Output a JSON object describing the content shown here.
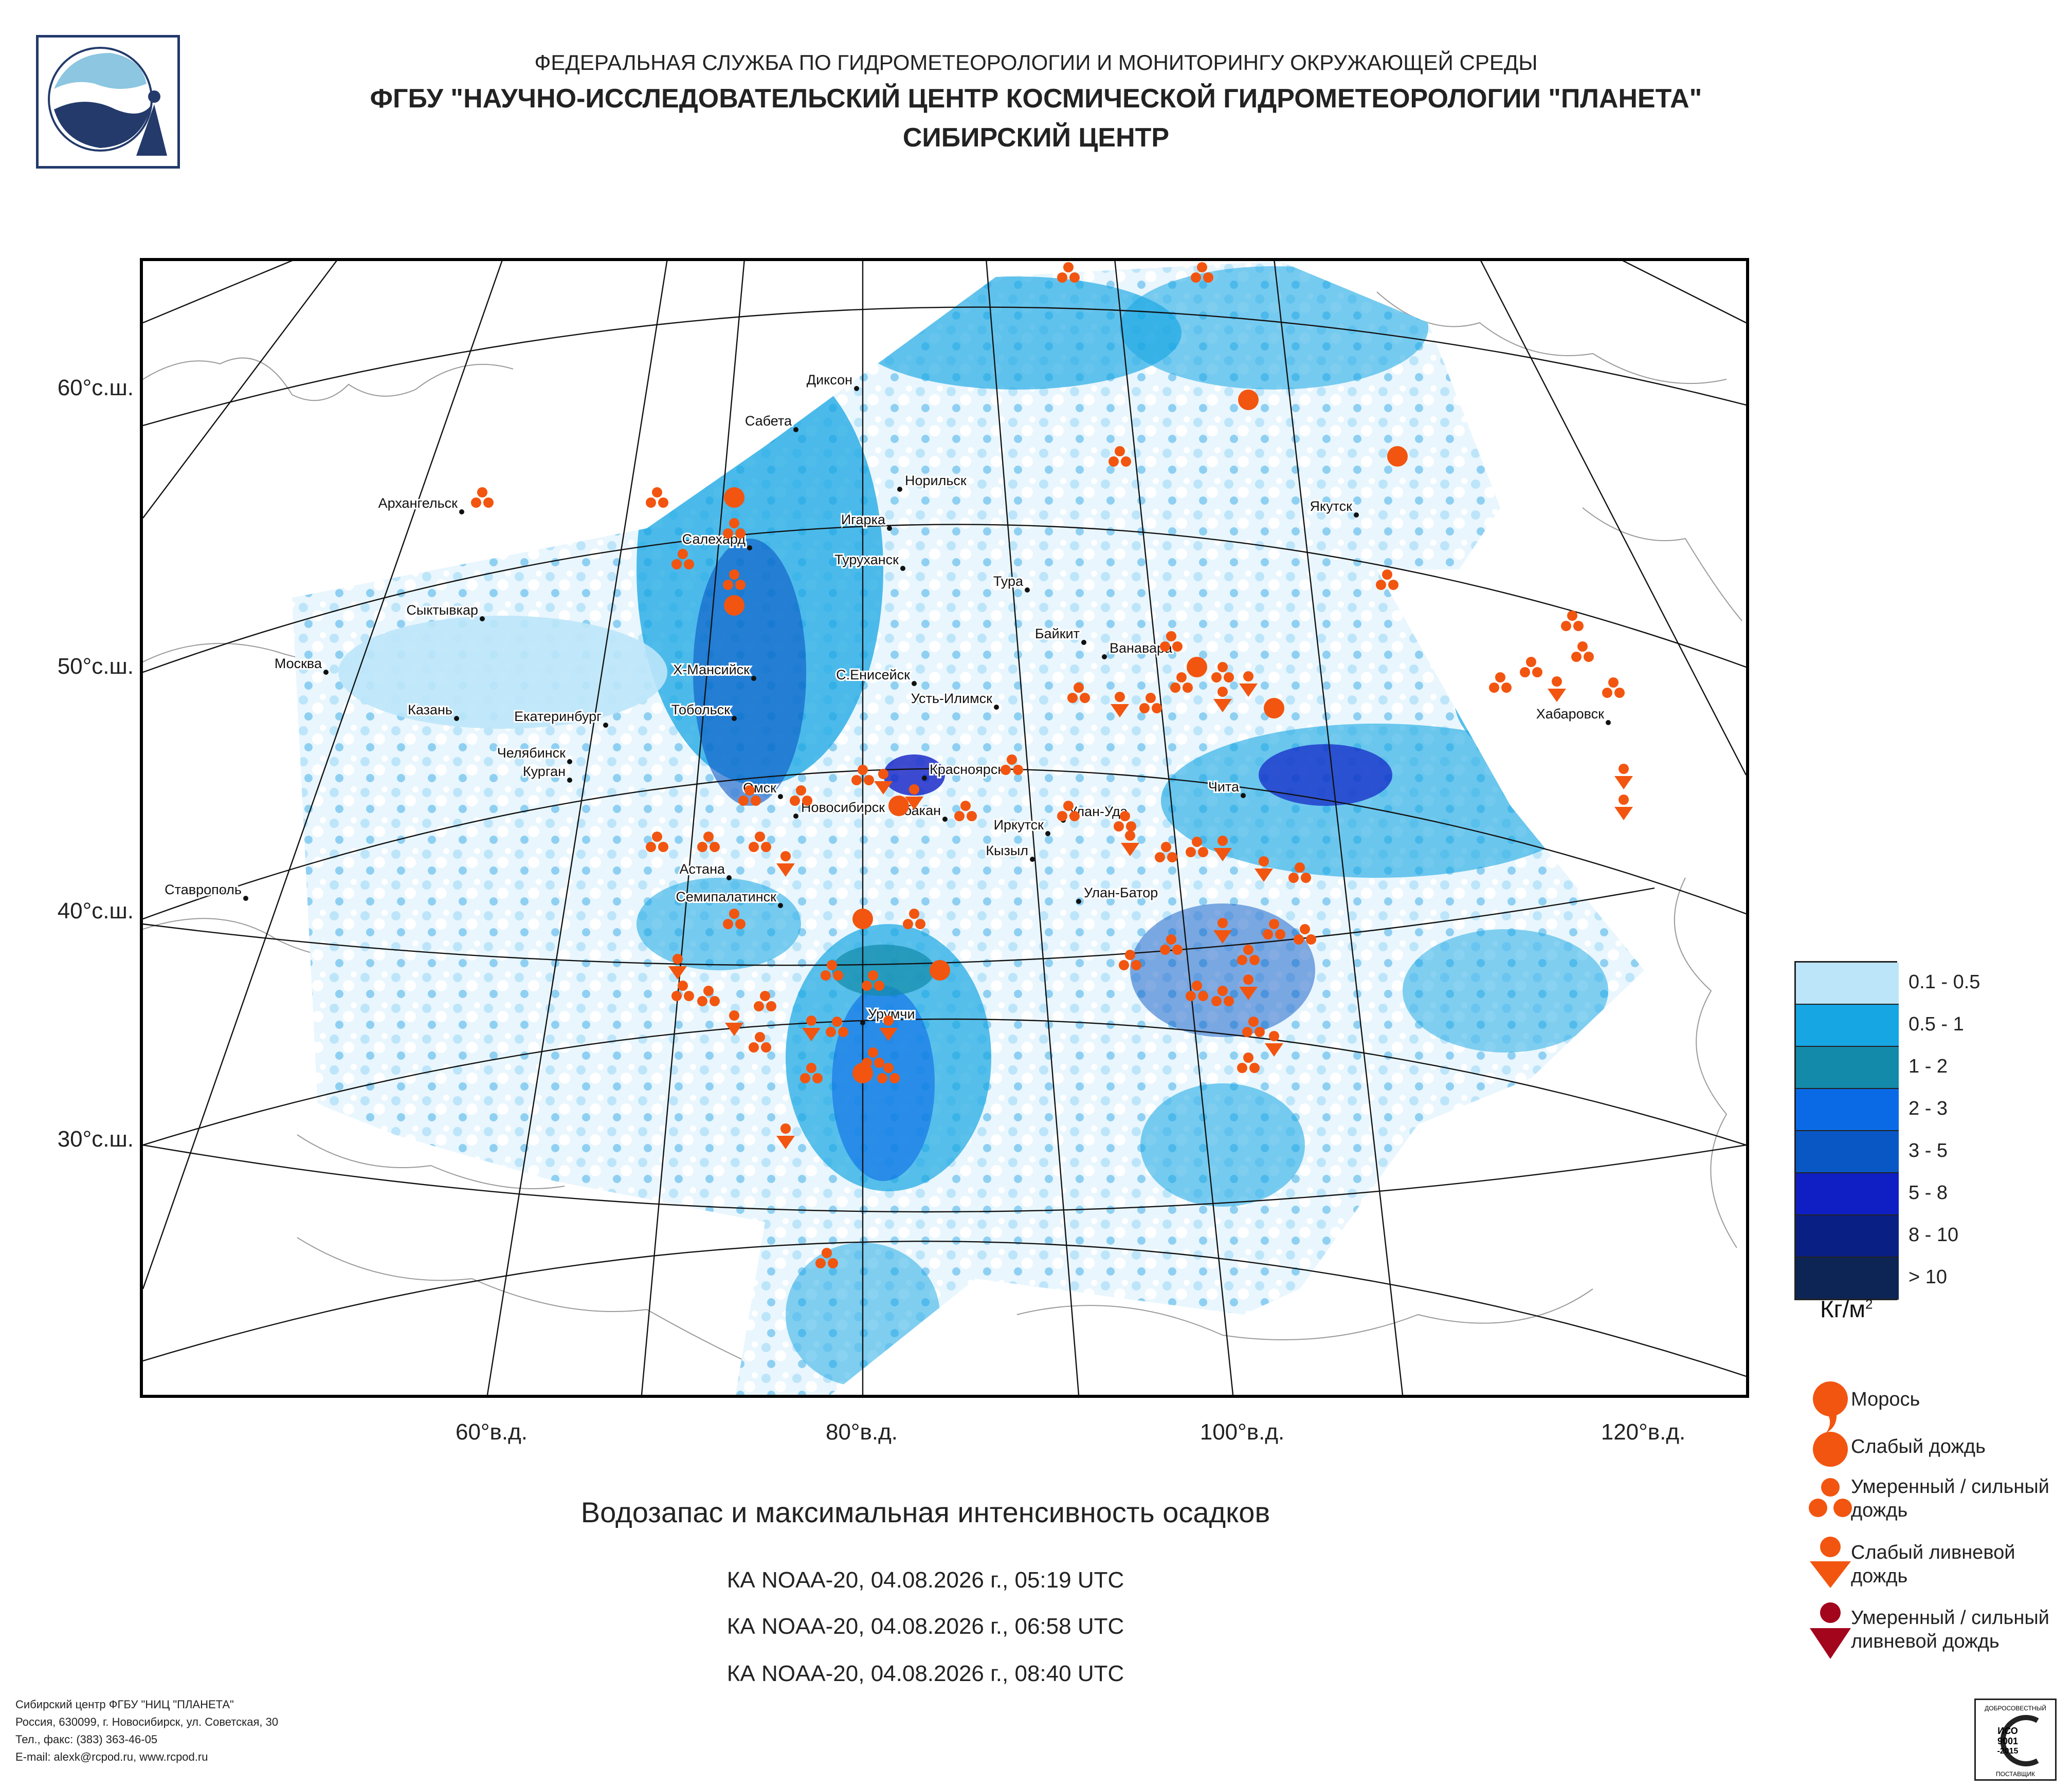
{
  "header": {
    "line1": "ФЕДЕРАЛЬНАЯ СЛУЖБА ПО ГИДРОМЕТЕОРОЛОГИИ И МОНИТОРИНГУ ОКРУЖАЮЩЕЙ СРЕДЫ",
    "line2": "ФГБУ \"НАУЧНО-ИССЛЕДОВАТЕЛЬСКИЙ ЦЕНТР КОСМИЧЕСКОЙ ГИДРОМЕТЕОРОЛОГИИ \"ПЛАНЕТА\"",
    "line3": "СИБИРСКИЙ ЦЕНТР"
  },
  "axes": {
    "lat": [
      "60°с.ш.",
      "50°с.ш.",
      "40°с.ш.",
      "30°с.ш."
    ],
    "lon": [
      "60°в.д.",
      "80°в.д.",
      "100°в.д.",
      "120°в.д."
    ]
  },
  "cities": [
    "Диксон",
    "Сабета",
    "Норильск",
    "Архангельск",
    "Игарка",
    "Салехард",
    "Туруханск",
    "Якутск",
    "Тура",
    "Сыктывкар",
    "Байкит",
    "Ванавара",
    "Москва",
    "Х-Мансийск",
    "С.Енисейск",
    "Усть-Илимск",
    "Казань",
    "Тобольск",
    "Екатеринбург",
    "Хабаровск",
    "Челябинск",
    "Курган",
    "Красноярск",
    "Чита",
    "Омск",
    "Новосибирск",
    "Абакан",
    "Улан-Удэ",
    "Иркутск",
    "Кызыл",
    "Астана",
    "Ставрополь",
    "Улан-Батор",
    "Семипалатинск",
    "Урумчи"
  ],
  "title": "Водозапас и максимальная интенсивность осадков",
  "passes": [
    "КА NOAA-20, 04.08.2026 г., 05:19 UTC",
    "КА NOAA-20, 04.08.2026 г., 06:58 UTC",
    "КА NOAA-20, 04.08.2026 г., 08:40 UTC"
  ],
  "legend": {
    "classes": [
      {
        "label": "0.1 - 0.5",
        "color": "#bde5fa"
      },
      {
        "label": "0.5 - 1",
        "color": "#15a6e3"
      },
      {
        "label": "1 - 2",
        "color": "#138aa9"
      },
      {
        "label": "2 - 3",
        "color": "#0a6ae6"
      },
      {
        "label": "3 - 5",
        "color": "#0957c5"
      },
      {
        "label": "5 - 8",
        "color": "#0f1fc4"
      },
      {
        "label": "8 - 10",
        "color": "#0a1f84"
      },
      {
        "label": "> 10",
        "color": "#0c2554"
      }
    ],
    "unit": "Кг/м",
    "unit_sup": "2",
    "symbols": [
      {
        "label": "Морось",
        "color": "#f25510"
      },
      {
        "label": "Слабый дождь",
        "color": "#f25510"
      },
      {
        "label": "Умеренный / сильный дождь",
        "color": "#f25510"
      },
      {
        "label": "Слабый ливневой дождь",
        "color": "#f25510"
      },
      {
        "label": "Умеренный / сильный ливневой дождь",
        "color": "#a3051c"
      }
    ]
  },
  "footer": {
    "l1": "Сибирский центр ФГБУ \"НИЦ \"ПЛАНЕТА\"",
    "l2": "Россия, 630099, г. Новосибирск, ул. Советская, 30",
    "l3": "Тел., факс: (383) 363-46-05",
    "l4": "E-mail: alexk@rcpod.ru, www.rcpod.ru"
  },
  "iso": {
    "top": "ДОБРОСОВЕСТНЫЙ",
    "mid1": "ИСО",
    "mid2": "9001",
    "mid3": "-2015",
    "bottom": "ПОСТАВЩИК"
  }
}
